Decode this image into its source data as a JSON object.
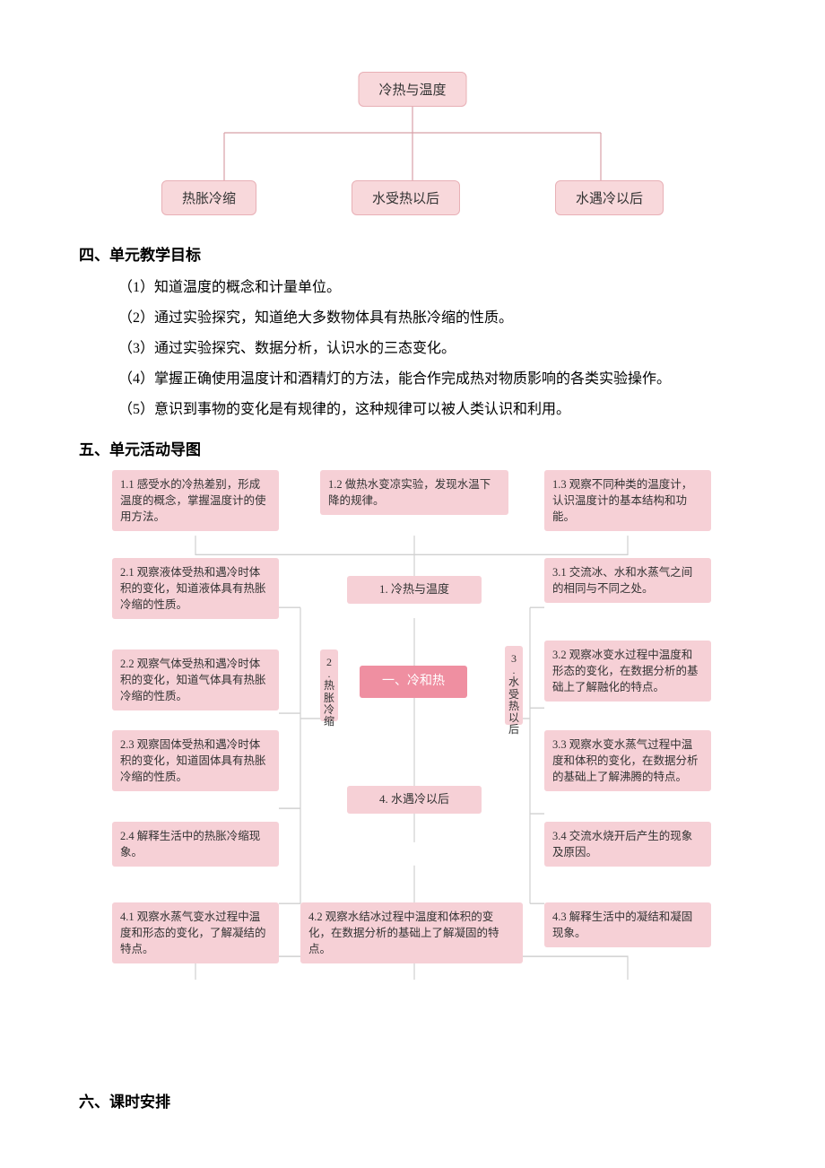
{
  "top_diagram": {
    "root": "冷热与温度",
    "children": [
      "热胀冷缩",
      "水受热以后",
      "水遇冷以后"
    ],
    "box_bg": "#f8d8db",
    "box_border": "#e8b0b6",
    "line_color": "#d8a0a8"
  },
  "headings": {
    "h4": "四、单元教学目标",
    "h5": "五、单元活动导图",
    "h6": "六、课时安排"
  },
  "goals": [
    "（1）知道温度的概念和计量单位。",
    "（2）通过实验探究，知道绝大多数物体具有热胀冷缩的性质。",
    "（3）通过实验探究、数据分析，认识水的三态变化。",
    "（4）掌握正确使用温度计和酒精灯的方法，能合作完成热对物质影响的各类实验操作。",
    "（5）意识到事物的变化是有规律的，这种规律可以被人类认识和利用。"
  ],
  "activity": {
    "colors": {
      "box_bg": "#f6d0d6",
      "main_bg": "#ef8fa1",
      "main_text": "#ffffff",
      "line": "#d0d0d0",
      "text": "#333333"
    },
    "row1": {
      "b11": "1.1 感受水的冷热差别，形成温度的概念，掌握温度计的使用方法。",
      "b12": "1.2 做热水变凉实验，发现水温下降的规律。",
      "b13": "1.3 观察不同种类的温度计，认识温度计的基本结构和功能。"
    },
    "left_col": {
      "b21": "2.1 观察液体受热和遇冷时体积的变化，知道液体具有热胀冷缩的性质。",
      "b22": "2.2 观察气体受热和遇冷时体积的变化，知道气体具有热胀冷缩的性质。",
      "b23": "2.3 观察固体受热和遇冷时体积的变化，知道固体具有热胀冷缩的性质。",
      "b24": "2.4 解释生活中的热胀冷缩现象。"
    },
    "right_col": {
      "b31": "3.1 交流冰、水和水蒸气之间的相同与不同之处。",
      "b32": "3.2 观察冰变水过程中温度和形态的变化，在数据分析的基础上了解融化的特点。",
      "b33": "3.3 观察水变水蒸气过程中温度和体积的变化，在数据分析的基础上了解沸腾的特点。",
      "b34": "3.4 交流水烧开后产生的现象及原因。"
    },
    "center": {
      "c1": "1. 冷热与温度",
      "main": "一、冷和热",
      "c4": "4. 水遇冷以后",
      "vert2": "2.热胀冷缩",
      "vert3": "3.水受热以后"
    },
    "row4": {
      "b41": "4.1 观察水蒸气变水过程中温度和形态的变化，了解凝结的特点。",
      "b42": "4.2 观察水结冰过程中温度和体积的变化，在数据分析的基础上了解凝固的特点。",
      "b43": "4.3 解释生活中的凝结和凝固现象。"
    }
  }
}
